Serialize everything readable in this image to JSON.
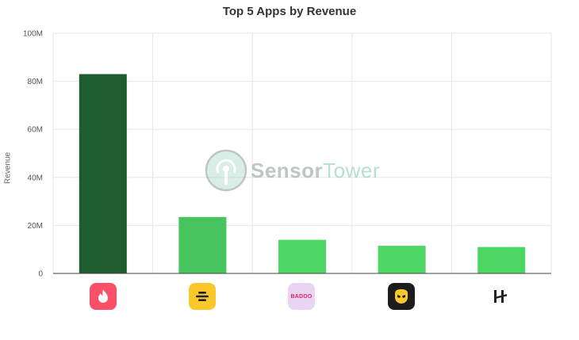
{
  "chart_data": {
    "type": "bar",
    "title": "Top 5 Apps by Revenue",
    "ylabel": "Revenue",
    "xlabel": "",
    "ylim": [
      0,
      100
    ],
    "yticks": [
      "0",
      "20M",
      "40M",
      "60M",
      "80M",
      "100M"
    ],
    "categories": [
      "tinder-icon",
      "bumble-icon",
      "badoo-icon",
      "grindr-icon",
      "hinge-icon"
    ],
    "values": [
      83,
      23.5,
      14,
      11.5,
      11
    ],
    "colors": [
      "#1f5c2e",
      "#47c45d",
      "#4cd663",
      "#4cd663",
      "#4cd663"
    ],
    "grid": true,
    "legend": "none"
  },
  "watermark": {
    "part1": "Sensor",
    "part2": "Tower"
  },
  "app_icons": {
    "badoo_text": "BADOO",
    "colors": {
      "tinder": "#fd5068",
      "bumble": "#fbc82c",
      "badoo": "#e9d4f3",
      "grindr": "#1c1c1c",
      "hinge": "#ffffff"
    }
  }
}
